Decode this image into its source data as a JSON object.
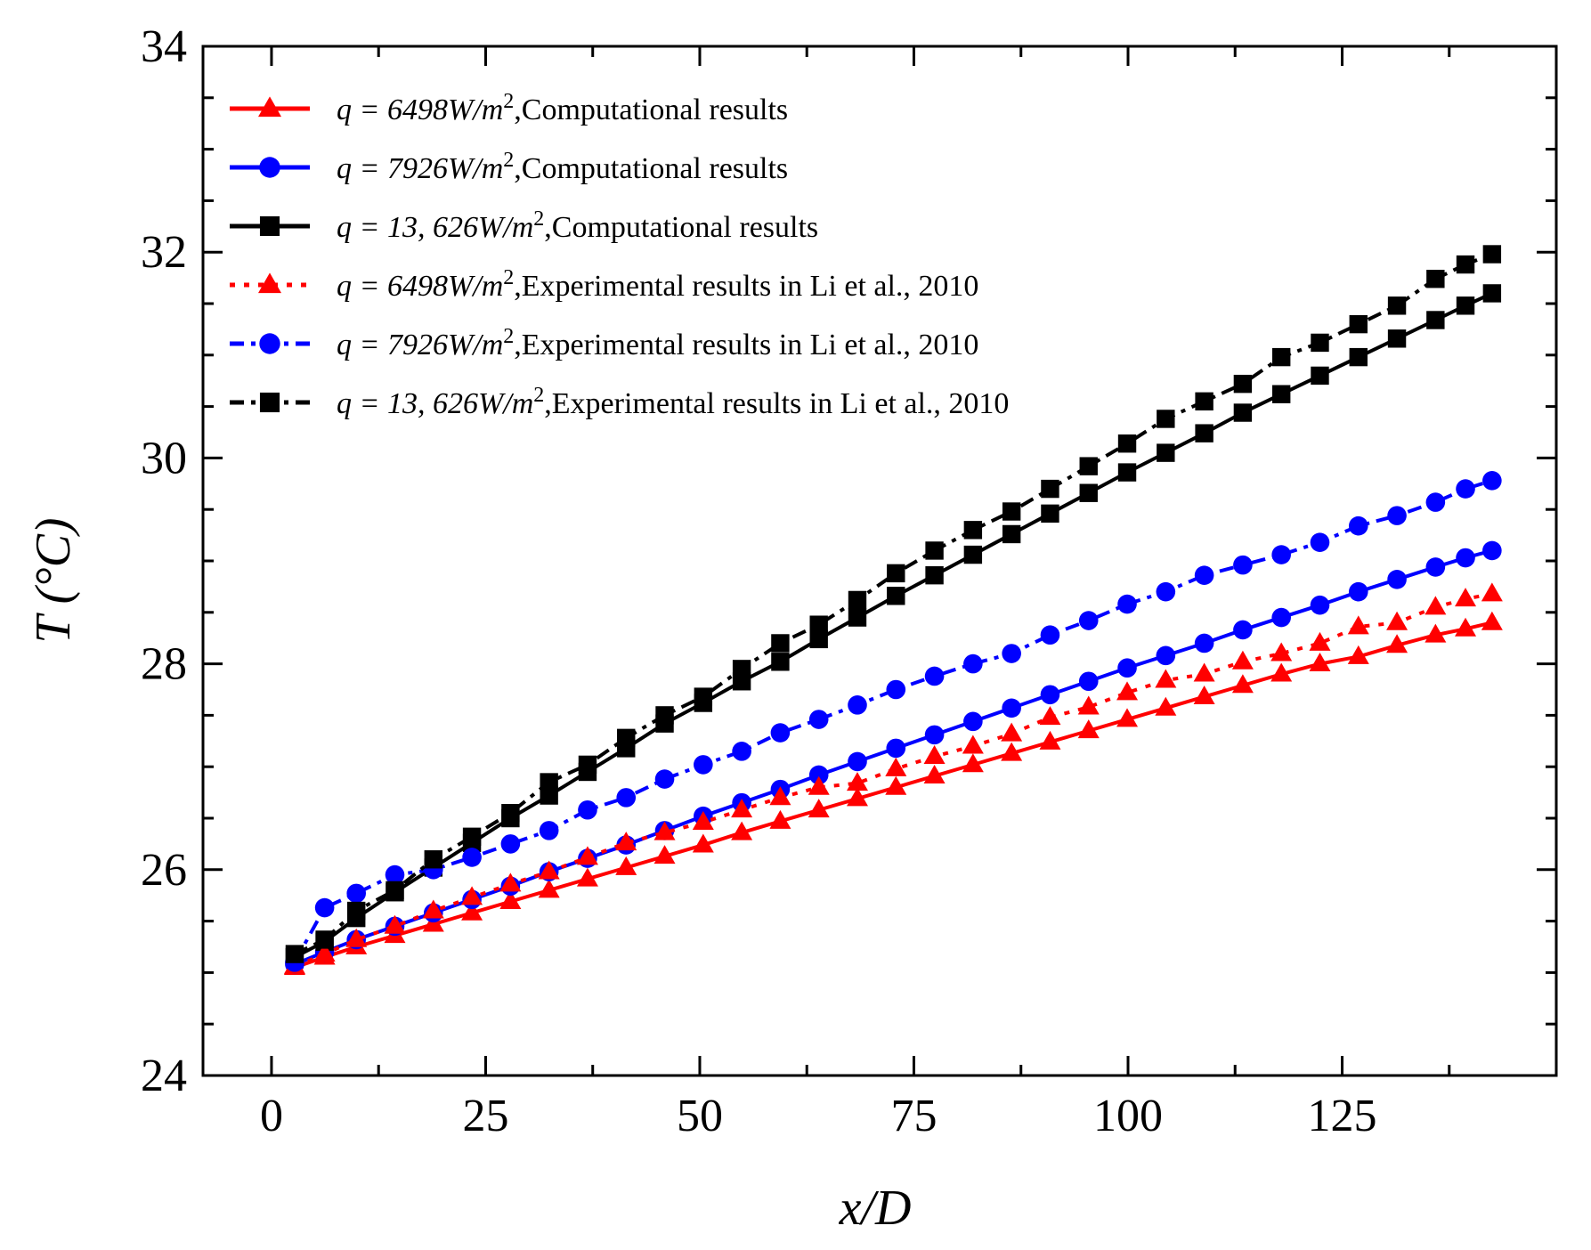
{
  "chart_data": {
    "type": "line",
    "title": "",
    "xlabel": "x/D",
    "ylabel": "T (°C)",
    "xlim": [
      -8,
      150
    ],
    "ylim": [
      24,
      34
    ],
    "xticks": [
      0,
      25,
      50,
      75,
      100,
      125
    ],
    "yticks": [
      24,
      26,
      28,
      30,
      32,
      34
    ],
    "grid": false,
    "legend_position": "top-left",
    "x": [
      2.7,
      6.2,
      9.9,
      14.4,
      18.9,
      23.4,
      27.9,
      32.4,
      36.9,
      41.4,
      45.9,
      50.4,
      54.9,
      59.4,
      63.9,
      68.4,
      72.9,
      77.4,
      81.9,
      86.4,
      90.9,
      95.4,
      99.9,
      104.4,
      108.9,
      113.4,
      117.9,
      122.4,
      126.9,
      131.4,
      135.9,
      139.4,
      142.5
    ],
    "series": [
      {
        "name": "Computational results",
        "q_prefix": "q = 6498",
        "unit_base": "W/m",
        "unit_exp": "2",
        "label_suffix": ",Computational results",
        "color": "#ff0000",
        "marker": "triangle",
        "linestyle": "solid",
        "values": [
          25.05,
          25.15,
          25.25,
          25.36,
          25.47,
          25.58,
          25.69,
          25.8,
          25.91,
          26.02,
          26.13,
          26.24,
          26.36,
          26.47,
          26.58,
          26.69,
          26.8,
          26.91,
          27.02,
          27.13,
          27.24,
          27.35,
          27.46,
          27.57,
          27.68,
          27.79,
          27.9,
          28.0,
          28.07,
          28.18,
          28.28,
          28.34,
          28.4
        ]
      },
      {
        "name": "Computational results",
        "q_prefix": "q = 7926",
        "unit_base": "W/m",
        "unit_exp": "2",
        "label_suffix": ",Computational results",
        "color": "#0000ff",
        "marker": "circle",
        "linestyle": "solid",
        "values": [
          25.08,
          25.2,
          25.32,
          25.45,
          25.58,
          25.71,
          25.84,
          25.98,
          26.11,
          26.24,
          26.38,
          26.52,
          26.65,
          26.78,
          26.92,
          27.05,
          27.18,
          27.31,
          27.44,
          27.57,
          27.7,
          27.83,
          27.96,
          28.08,
          28.2,
          28.33,
          28.45,
          28.57,
          28.7,
          28.82,
          28.94,
          29.03,
          29.1
        ]
      },
      {
        "name": "Computational results",
        "q_prefix": "q = 13, 626",
        "unit_base": "W/m",
        "unit_exp": "2",
        "label_suffix": ",Computational results",
        "color": "#000000",
        "marker": "square",
        "linestyle": "solid",
        "values": [
          25.15,
          25.3,
          25.53,
          25.78,
          26.02,
          26.26,
          26.5,
          26.72,
          26.95,
          27.18,
          27.42,
          27.62,
          27.83,
          28.02,
          28.24,
          28.45,
          28.66,
          28.86,
          29.06,
          29.26,
          29.46,
          29.66,
          29.86,
          30.05,
          30.24,
          30.44,
          30.62,
          30.8,
          30.98,
          31.16,
          31.34,
          31.48,
          31.6
        ]
      },
      {
        "name": "Experimental results in Li et al., 2010",
        "q_prefix": "q = 6498",
        "unit_base": "W/m",
        "unit_exp": "2",
        "label_suffix": ",Experimental results in Li et al., 2010",
        "color": "#ff0000",
        "marker": "triangle",
        "linestyle": "dotted",
        "values": [
          25.06,
          25.18,
          25.32,
          25.45,
          25.6,
          25.73,
          25.86,
          25.98,
          26.12,
          26.26,
          26.36,
          26.46,
          26.58,
          26.7,
          26.8,
          26.84,
          26.98,
          27.1,
          27.2,
          27.32,
          27.48,
          27.58,
          27.72,
          27.84,
          27.9,
          28.02,
          28.1,
          28.2,
          28.36,
          28.4,
          28.55,
          28.63,
          28.68
        ]
      },
      {
        "name": "Experimental results in Li et al., 2010",
        "q_prefix": "q = 7926",
        "unit_base": "W/m",
        "unit_exp": "2",
        "label_suffix": ",Experimental results in Li et al., 2010",
        "color": "#0000ff",
        "marker": "circle",
        "linestyle": "dashdot",
        "values": [
          25.1,
          25.63,
          25.77,
          25.95,
          26.0,
          26.12,
          26.25,
          26.38,
          26.58,
          26.7,
          26.88,
          27.02,
          27.15,
          27.33,
          27.46,
          27.6,
          27.75,
          27.88,
          28.0,
          28.1,
          28.28,
          28.42,
          28.58,
          28.7,
          28.86,
          28.96,
          29.06,
          29.18,
          29.34,
          29.44,
          29.57,
          29.7,
          29.78
        ]
      },
      {
        "name": "Experimental results in Li et al., 2010",
        "q_prefix": "q = 13, 626",
        "unit_base": "W/m",
        "unit_exp": "2",
        "label_suffix": ",Experimental results in Li et al., 2010",
        "color": "#000000",
        "marker": "square",
        "linestyle": "dashdot",
        "values": [
          25.18,
          25.32,
          25.6,
          25.8,
          26.1,
          26.32,
          26.55,
          26.85,
          27.02,
          27.28,
          27.5,
          27.68,
          27.95,
          28.2,
          28.38,
          28.62,
          28.88,
          29.1,
          29.3,
          29.48,
          29.7,
          29.92,
          30.14,
          30.38,
          30.55,
          30.72,
          30.98,
          31.12,
          31.3,
          31.48,
          31.74,
          31.88,
          31.98
        ]
      }
    ]
  }
}
